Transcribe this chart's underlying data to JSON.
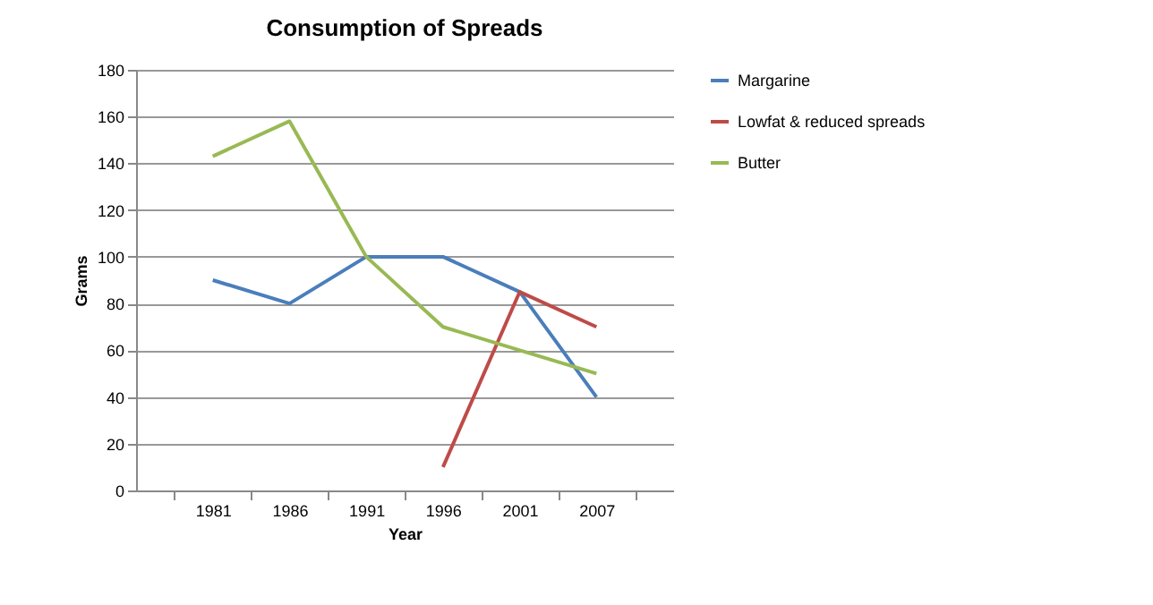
{
  "chart_data": {
    "type": "line",
    "title": "Consumption of Spreads",
    "xlabel": "Year",
    "ylabel": "Grams",
    "categories": [
      "1981",
      "1986",
      "1991",
      "1996",
      "2001",
      "2007"
    ],
    "series": [
      {
        "name": "Margarine",
        "color": "#4a7ebb",
        "values": [
          90,
          80,
          100,
          100,
          85,
          40
        ]
      },
      {
        "name": "Lowfat & reduced spreads",
        "color": "#be4b48",
        "values": [
          null,
          null,
          null,
          10,
          85,
          70
        ]
      },
      {
        "name": "Butter",
        "color": "#98b954",
        "values": [
          143,
          158,
          100,
          70,
          60,
          50
        ]
      }
    ],
    "ylim": [
      0,
      180
    ],
    "yticks": [
      0,
      20,
      40,
      60,
      80,
      100,
      120,
      140,
      160,
      180
    ],
    "grid": "y",
    "legend": "right",
    "marker": "none",
    "line_style": "solid"
  }
}
